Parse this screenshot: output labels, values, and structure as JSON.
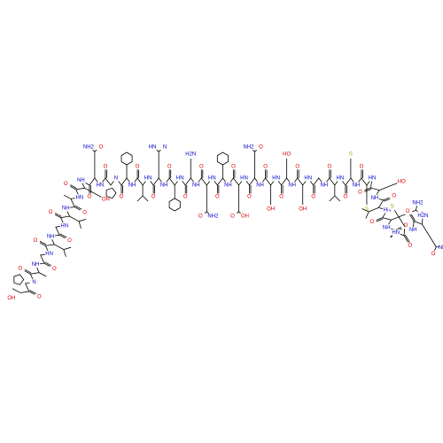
{
  "c_terminal_label": "OH",
  "residues": [
    {
      "amide": "N",
      "carbonyl": "O",
      "side": []
    },
    {
      "amide": "NH",
      "carbonyl": "O",
      "side": []
    },
    {
      "amide": "HN",
      "carbonyl": "O",
      "side": []
    },
    {
      "amide": "NH",
      "carbonyl": "O",
      "side": []
    },
    {
      "amide": "HN",
      "carbonyl": "O",
      "side": []
    },
    {
      "amide": "NH",
      "carbonyl": "O",
      "side": []
    },
    {
      "amide": "HN",
      "carbonyl": "O",
      "side": []
    },
    {
      "amide": "NH",
      "carbonyl": "O",
      "side": [
        "OH"
      ]
    },
    {
      "amide": "HN",
      "carbonyl": "O",
      "side": [
        "O",
        "NH2"
      ]
    },
    {
      "amide": "N",
      "carbonyl": "O",
      "side": []
    },
    {
      "amide": "NH",
      "carbonyl": "O",
      "side": []
    },
    {
      "amide": "HN",
      "carbonyl": "O",
      "side": []
    },
    {
      "amide": "NH",
      "carbonyl": "O",
      "side": [
        "N",
        "HN"
      ]
    },
    {
      "amide": "HN",
      "carbonyl": "O",
      "side": []
    },
    {
      "amide": "NH",
      "carbonyl": "O",
      "side": [
        "H2N"
      ]
    },
    {
      "amide": "HN",
      "carbonyl": "O",
      "side": [
        "O",
        "NH2"
      ]
    },
    {
      "amide": "NH",
      "carbonyl": "O",
      "side": []
    },
    {
      "amide": "HN",
      "carbonyl": "O",
      "side": [
        "O",
        "OH"
      ]
    },
    {
      "amide": "NH",
      "carbonyl": "O",
      "side": [
        "O",
        "NH2"
      ]
    },
    {
      "amide": "HN",
      "carbonyl": "O",
      "side": [
        "OH"
      ]
    },
    {
      "amide": "NH",
      "carbonyl": "O",
      "side": [
        "HO"
      ]
    },
    {
      "amide": "HN",
      "carbonyl": "O",
      "side": [
        "OH"
      ]
    },
    {
      "amide": "NH",
      "carbonyl": "O",
      "side": []
    },
    {
      "amide": "HN",
      "carbonyl": "O",
      "side": []
    },
    {
      "amide": "NH",
      "carbonyl": "O",
      "side": [
        "S"
      ]
    },
    {
      "amide": "HN",
      "carbonyl": "O",
      "side": [
        "S"
      ]
    },
    {
      "amide": "NH",
      "carbonyl": "O",
      "side": [
        "HO"
      ]
    },
    {
      "amide": "HN",
      "carbonyl": "O",
      "side": []
    },
    {
      "amide": "NH",
      "carbonyl": "O",
      "side": [
        "O",
        "NH2"
      ]
    },
    {
      "amide": "HN",
      "carbonyl": "O",
      "side": []
    },
    {
      "amide": "NH",
      "carbonyl": "O",
      "side": [
        "S"
      ]
    },
    {
      "amide": "H2N",
      "carbonyl": "O",
      "side": [
        "O",
        "NH2"
      ]
    }
  ]
}
